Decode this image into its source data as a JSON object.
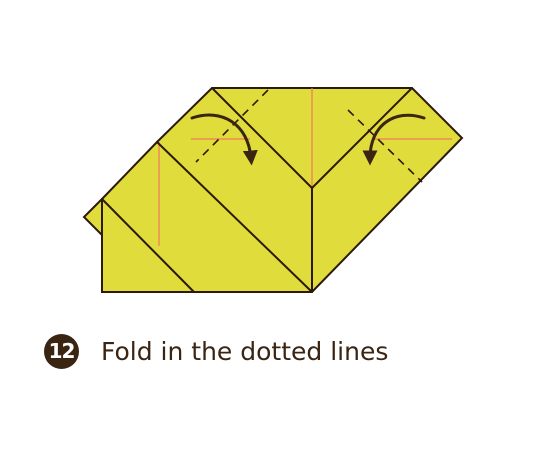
{
  "step": {
    "number": "12",
    "instruction": "Fold in the dotted lines"
  },
  "colors": {
    "paper": "#E0DC3C",
    "outline": "#2B1A0A",
    "crease": "#F0785A",
    "badge": "#3A2412",
    "arrow": "#3A2412"
  },
  "icons": {
    "left_fold_arrow": "curved-arrow-right-down",
    "right_fold_arrow": "curved-arrow-left-down"
  }
}
